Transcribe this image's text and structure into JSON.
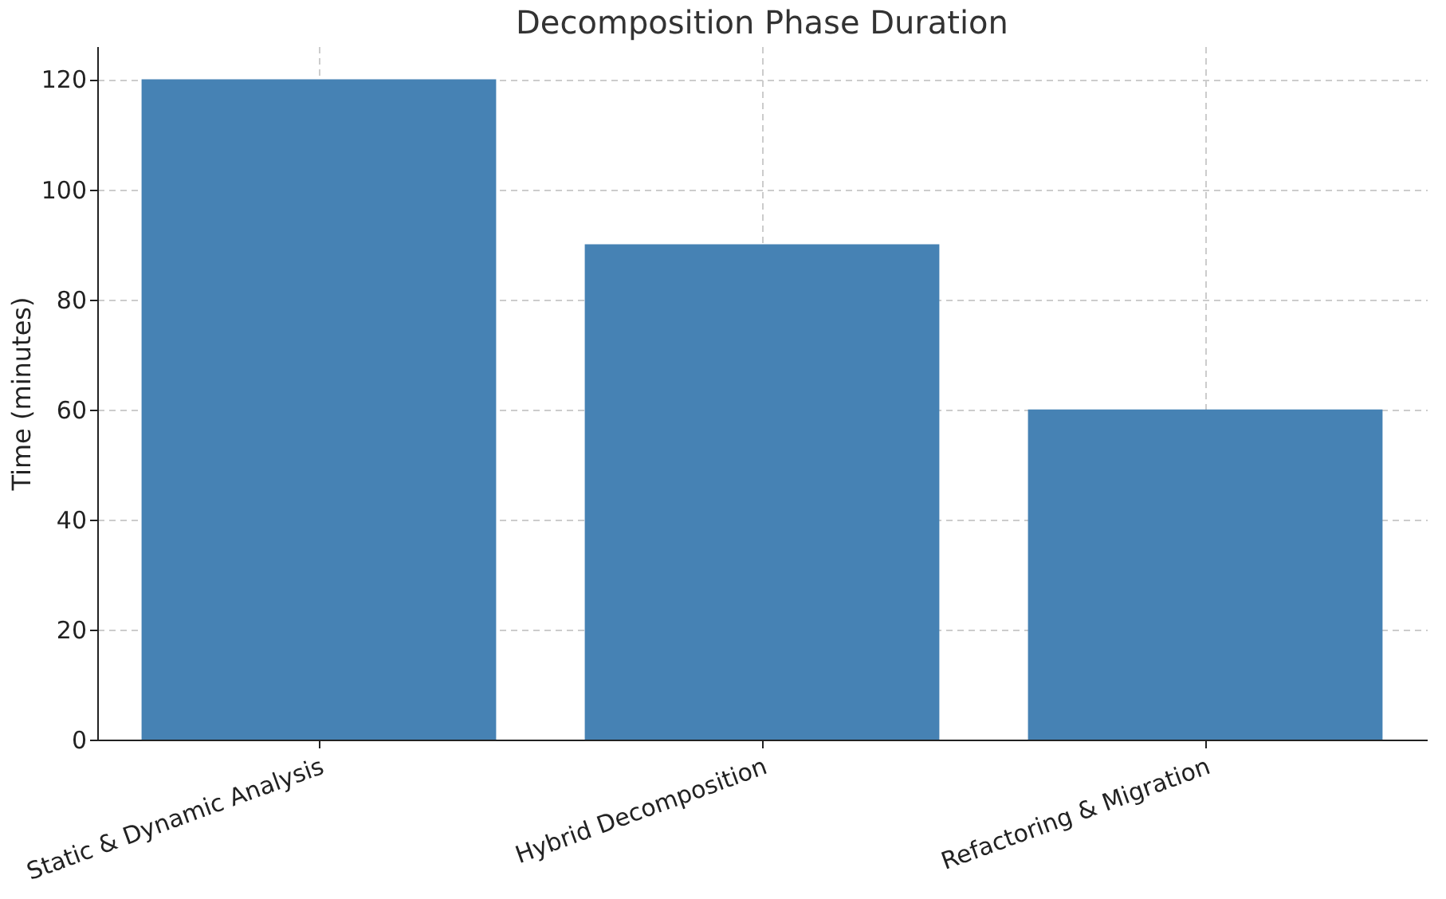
{
  "chart_data": {
    "type": "bar",
    "title": "Decomposition Phase Duration",
    "ylabel": "Time (minutes)",
    "categories": [
      "Static & Dynamic Analysis",
      "Hybrid Decomposition",
      "Refactoring & Migration"
    ],
    "values": [
      120,
      90,
      60
    ],
    "color": "#4682b4",
    "ylim": [
      0,
      126
    ],
    "yticks": [
      0,
      20,
      40,
      60,
      80,
      100,
      120
    ],
    "grid": true
  }
}
